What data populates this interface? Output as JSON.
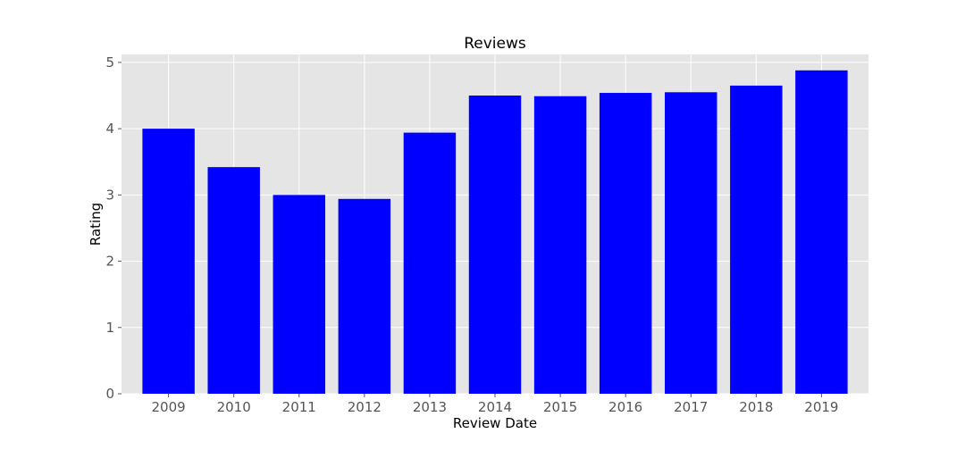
{
  "chart_data": {
    "type": "bar",
    "title": "Reviews",
    "xlabel": "Review Date",
    "ylabel": "Rating",
    "categories": [
      "2009",
      "2010",
      "2011",
      "2012",
      "2013",
      "2014",
      "2015",
      "2016",
      "2017",
      "2018",
      "2019"
    ],
    "values": [
      4.0,
      3.42,
      3.0,
      2.94,
      3.94,
      4.5,
      4.49,
      4.54,
      4.55,
      4.65,
      4.88
    ],
    "ylim": [
      0,
      5.12
    ],
    "yticks": [
      0,
      1,
      2,
      3,
      4,
      5
    ],
    "grid": true,
    "bar_color": "#0000ff",
    "plot_background": "#e5e5e5",
    "grid_color": "#ffffff"
  }
}
